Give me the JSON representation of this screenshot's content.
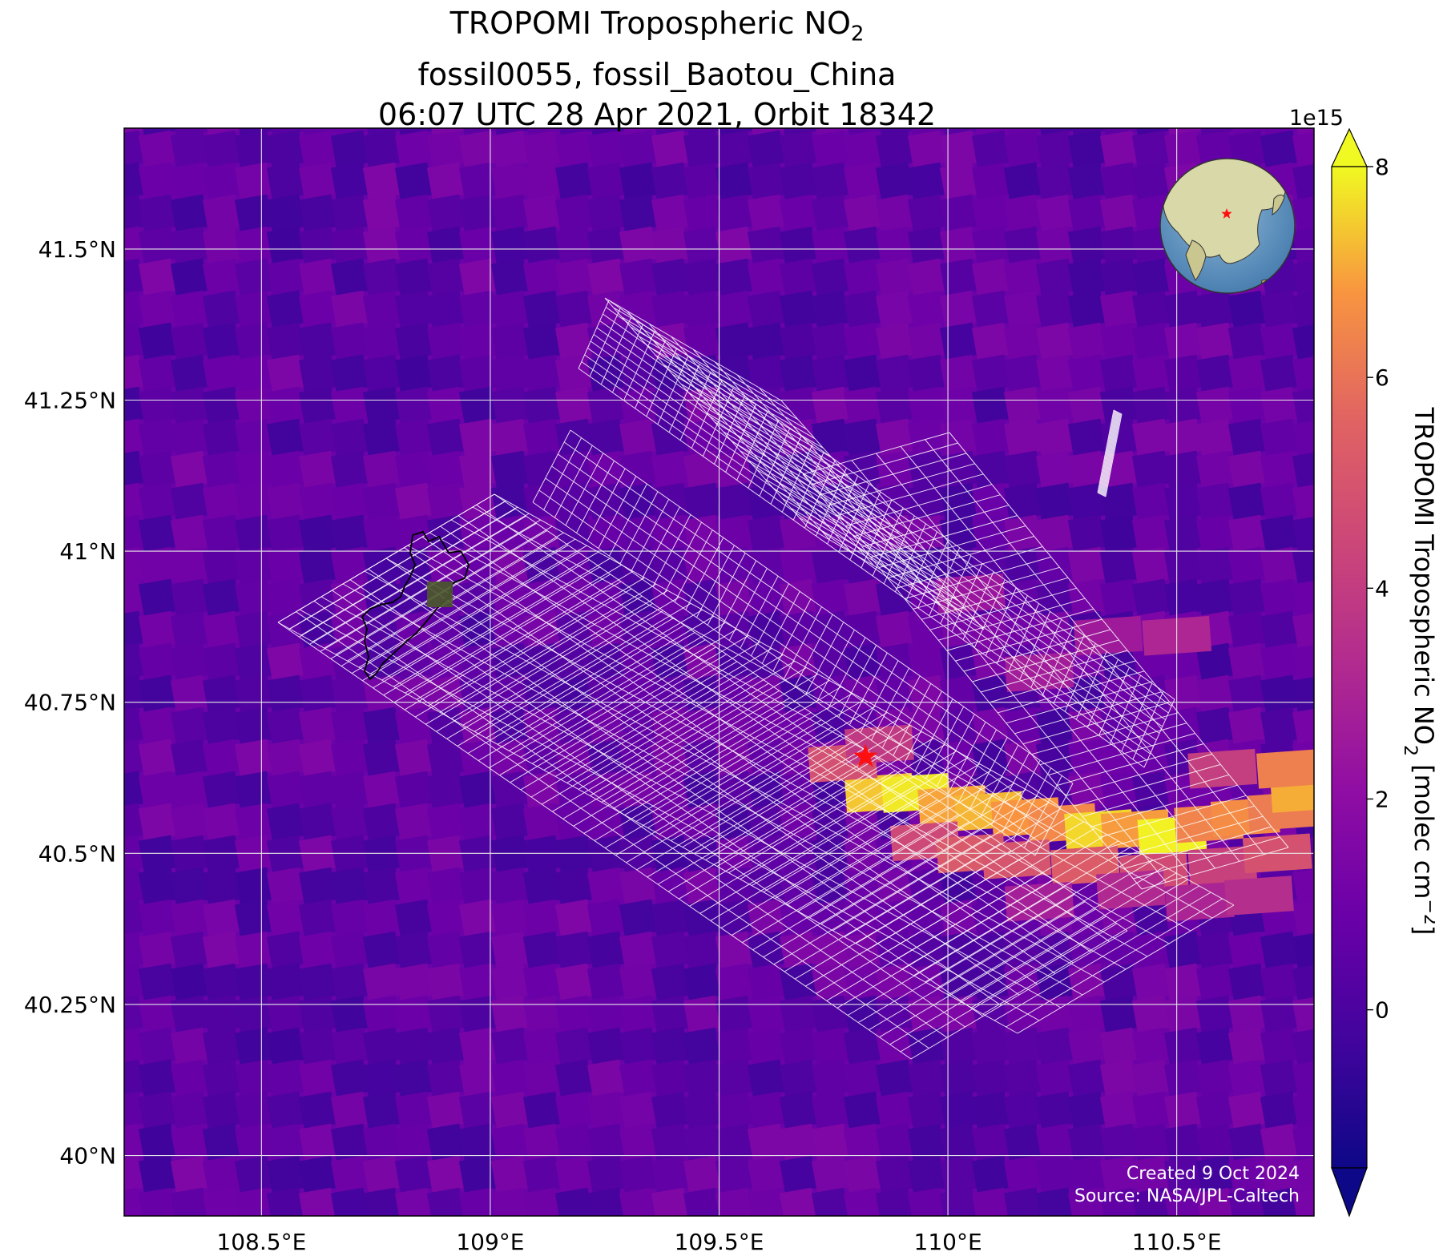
{
  "title": {
    "line1_prefix": "TROPOMI Tropospheric NO",
    "line1_sub": "2",
    "line2": "fossil0055, fossil_Baotou_China",
    "line3": "06:07 UTC 28 Apr 2021, Orbit 18342"
  },
  "map": {
    "lon_range": [
      108.2,
      110.8
    ],
    "lat_range": [
      39.9,
      41.7
    ],
    "lon_ticks": [
      {
        "value": 108.5,
        "label": "108.5°E"
      },
      {
        "value": 109.0,
        "label": "109°E"
      },
      {
        "value": 109.5,
        "label": "109.5°E"
      },
      {
        "value": 110.0,
        "label": "110°E"
      },
      {
        "value": 110.5,
        "label": "110.5°E"
      }
    ],
    "lat_ticks": [
      {
        "value": 41.5,
        "label": "41.5°N"
      },
      {
        "value": 41.25,
        "label": "41.25°N"
      },
      {
        "value": 41.0,
        "label": "41°N"
      },
      {
        "value": 40.75,
        "label": "40.75°N"
      },
      {
        "value": 40.5,
        "label": "40.5°N"
      },
      {
        "value": 40.25,
        "label": "40.25°N"
      },
      {
        "value": 40.0,
        "label": "40°N"
      }
    ],
    "target": {
      "lon": 109.82,
      "lat": 40.66,
      "marker": "red-star"
    },
    "gridlines": true,
    "credits": {
      "created": "Created 9 Oct 2024",
      "source": "Source: NASA/JPL-Caltech"
    }
  },
  "colorbar": {
    "colormap": "plasma",
    "range": [
      -1.5,
      8
    ],
    "exponent_label": "1e15",
    "ticks": [
      {
        "value": 0,
        "label": "0"
      },
      {
        "value": 2,
        "label": "2"
      },
      {
        "value": 4,
        "label": "4"
      },
      {
        "value": 6,
        "label": "6"
      },
      {
        "value": 8,
        "label": "8"
      }
    ],
    "label_prefix": "TROPOMI Tropospheric NO",
    "label_sub": "2",
    "label_suffix": " [molec cm",
    "label_sup": "−2",
    "label_end": "]",
    "extend": "both"
  },
  "plume": {
    "description_colors": {
      "high": "#f0f921",
      "mid": "#fca636",
      "low": "#e16462"
    },
    "cells": [
      {
        "lon": 109.85,
        "lat": 40.6,
        "v": 7.4
      },
      {
        "lon": 109.93,
        "lat": 40.6,
        "v": 7.8
      },
      {
        "lon": 110.01,
        "lat": 40.58,
        "v": 7.0
      },
      {
        "lon": 110.09,
        "lat": 40.57,
        "v": 7.2
      },
      {
        "lon": 110.17,
        "lat": 40.56,
        "v": 6.8
      },
      {
        "lon": 110.25,
        "lat": 40.55,
        "v": 6.5
      },
      {
        "lon": 110.33,
        "lat": 40.54,
        "v": 7.6
      },
      {
        "lon": 110.41,
        "lat": 40.54,
        "v": 6.9
      },
      {
        "lon": 110.49,
        "lat": 40.53,
        "v": 7.9
      },
      {
        "lon": 110.57,
        "lat": 40.55,
        "v": 6.4
      },
      {
        "lon": 110.65,
        "lat": 40.56,
        "v": 6.6
      },
      {
        "lon": 110.73,
        "lat": 40.57,
        "v": 6.2
      },
      {
        "lon": 110.78,
        "lat": 40.6,
        "v": 7.1
      },
      {
        "lon": 109.77,
        "lat": 40.65,
        "v": 4.8
      },
      {
        "lon": 109.85,
        "lat": 40.68,
        "v": 3.9
      },
      {
        "lon": 109.95,
        "lat": 40.52,
        "v": 4.5
      },
      {
        "lon": 110.05,
        "lat": 40.5,
        "v": 5.2
      },
      {
        "lon": 110.15,
        "lat": 40.49,
        "v": 5.0
      },
      {
        "lon": 110.3,
        "lat": 40.48,
        "v": 5.3
      },
      {
        "lon": 110.45,
        "lat": 40.47,
        "v": 4.6
      },
      {
        "lon": 110.6,
        "lat": 40.48,
        "v": 4.2
      },
      {
        "lon": 110.72,
        "lat": 40.5,
        "v": 4.9
      },
      {
        "lon": 110.75,
        "lat": 40.64,
        "v": 6.3
      },
      {
        "lon": 110.6,
        "lat": 40.64,
        "v": 4.1
      },
      {
        "lon": 110.4,
        "lat": 40.44,
        "v": 3.2
      },
      {
        "lon": 110.55,
        "lat": 40.42,
        "v": 3.0
      },
      {
        "lon": 110.68,
        "lat": 40.43,
        "v": 3.4
      },
      {
        "lon": 110.2,
        "lat": 40.42,
        "v": 2.8
      },
      {
        "lon": 110.5,
        "lat": 40.86,
        "v": 3.1
      },
      {
        "lon": 110.35,
        "lat": 40.86,
        "v": 2.6
      },
      {
        "lon": 110.05,
        "lat": 40.93,
        "v": 2.4
      },
      {
        "lon": 110.2,
        "lat": 40.8,
        "v": 2.7
      }
    ]
  }
}
